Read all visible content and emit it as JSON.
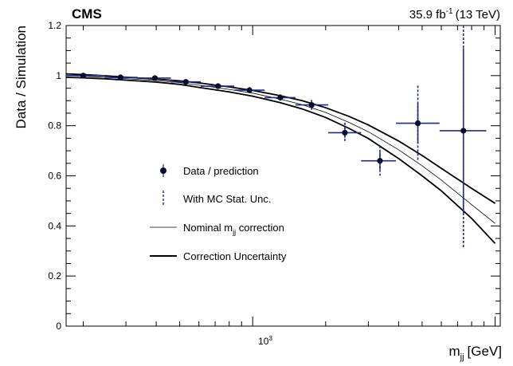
{
  "header": {
    "experiment": "CMS",
    "luminosity": "35.9 fb",
    "luminosity_exp": "-1",
    "energy": "(13 TeV)"
  },
  "chart_data": {
    "type": "scatter",
    "xscale": "log",
    "xlim": [
      170,
      10500
    ],
    "ylim": [
      0,
      1.2
    ],
    "xlabel": "m",
    "xlabel_sub": "jj",
    "xlabel_unit": "[GeV]",
    "ylabel": "Data / Simulation",
    "yticks": [
      0,
      0.2,
      0.4,
      0.6,
      0.8,
      1,
      1.2
    ],
    "ytick_labels": [
      "0",
      "0.2",
      "0.4",
      "0.6",
      "0.8",
      "1",
      "1.2"
    ],
    "xtick_label": {
      "base": "10",
      "exp": "3",
      "value": 1000
    },
    "legend": {
      "position": "center-left",
      "entries": [
        {
          "label": "Data / prediction",
          "style": "marker"
        },
        {
          "label": "With MC Stat. Unc.",
          "style": "dashed-errorbar"
        },
        {
          "label": "Nominal m",
          "label_sub": "jj",
          "label_suffix": " correction",
          "style": "thin-line"
        },
        {
          "label": "Correction Uncertainty",
          "style": "thick-line"
        }
      ]
    },
    "points": [
      {
        "x": 200,
        "xlo": 170,
        "xhi": 245,
        "y": 1.0,
        "stat": 0.004,
        "mc": 0.008
      },
      {
        "x": 285,
        "xlo": 245,
        "xhi": 335,
        "y": 0.993,
        "stat": 0.004,
        "mc": 0.008
      },
      {
        "x": 395,
        "xlo": 335,
        "xhi": 460,
        "y": 0.99,
        "stat": 0.004,
        "mc": 0.009
      },
      {
        "x": 530,
        "xlo": 460,
        "xhi": 610,
        "y": 0.975,
        "stat": 0.005,
        "mc": 0.01
      },
      {
        "x": 720,
        "xlo": 610,
        "xhi": 840,
        "y": 0.958,
        "stat": 0.005,
        "mc": 0.01
      },
      {
        "x": 970,
        "xlo": 840,
        "xhi": 1120,
        "y": 0.942,
        "stat": 0.006,
        "mc": 0.012
      },
      {
        "x": 1300,
        "xlo": 1120,
        "xhi": 1500,
        "y": 0.912,
        "stat": 0.007,
        "mc": 0.014
      },
      {
        "x": 1750,
        "xlo": 1500,
        "xhi": 2050,
        "y": 0.883,
        "stat": 0.01,
        "mc": 0.02
      },
      {
        "x": 2400,
        "xlo": 2050,
        "xhi": 2800,
        "y": 0.772,
        "stat": 0.02,
        "mc": 0.04
      },
      {
        "x": 3350,
        "xlo": 2800,
        "xhi": 3900,
        "y": 0.66,
        "stat": 0.035,
        "mc": 0.06
      },
      {
        "x": 4800,
        "xlo": 3900,
        "xhi": 5900,
        "y": 0.81,
        "stat": 0.08,
        "mc": 0.15
      },
      {
        "x": 7400,
        "xlo": 5900,
        "xhi": 9200,
        "y": 0.78,
        "stat": 0.33,
        "mc": 0.47
      }
    ],
    "curves": {
      "nominal": {
        "x": [
          170,
          200,
          250,
          300,
          400,
          500,
          600,
          800,
          1000,
          1300,
          1600,
          2000,
          2500,
          3000,
          4000,
          5000,
          6000,
          8000,
          10000
        ],
        "y": [
          1.0,
          0.998,
          0.993,
          0.988,
          0.98,
          0.972,
          0.962,
          0.945,
          0.93,
          0.906,
          0.884,
          0.853,
          0.813,
          0.776,
          0.704,
          0.64,
          0.583,
          0.485,
          0.41
        ]
      },
      "upper": {
        "x": [
          170,
          200,
          250,
          300,
          400,
          500,
          600,
          800,
          1000,
          1300,
          1600,
          2000,
          2500,
          3000,
          4000,
          5000,
          6000,
          8000,
          10000
        ],
        "y": [
          1.007,
          1.004,
          0.999,
          0.994,
          0.986,
          0.979,
          0.971,
          0.955,
          0.941,
          0.92,
          0.9,
          0.872,
          0.837,
          0.803,
          0.739,
          0.681,
          0.63,
          0.55,
          0.49
        ]
      },
      "lower": {
        "x": [
          170,
          200,
          250,
          300,
          400,
          500,
          600,
          800,
          1000,
          1300,
          1600,
          2000,
          2500,
          3000,
          4000,
          5000,
          6000,
          8000,
          10000
        ],
        "y": [
          0.993,
          0.991,
          0.987,
          0.982,
          0.974,
          0.965,
          0.953,
          0.935,
          0.918,
          0.892,
          0.867,
          0.833,
          0.789,
          0.749,
          0.669,
          0.6,
          0.54,
          0.43,
          0.33
        ]
      }
    },
    "colors": {
      "data": "#000000",
      "errorbar": "#1f2a8c",
      "curve": "#000000",
      "axis": "#000000"
    },
    "grid": false
  }
}
